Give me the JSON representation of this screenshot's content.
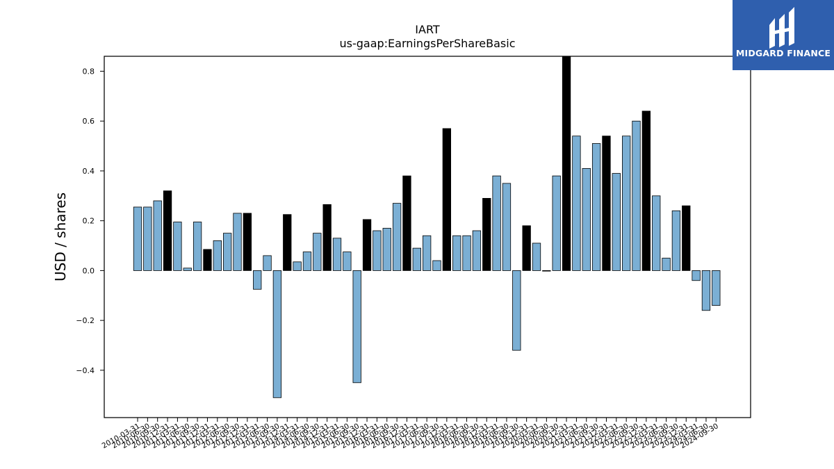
{
  "brand": {
    "name": "MIDGARD FINANCE",
    "background": "#2f5fae",
    "foreground": "#ffffff"
  },
  "chart_data": {
    "type": "bar",
    "title": "IART",
    "subtitle": "us-gaap:EarningsPerShareBasic",
    "xlabel": "",
    "ylabel": "USD / shares",
    "ylim": [
      -0.59,
      0.86
    ],
    "yticks": [
      -0.4,
      -0.2,
      0.0,
      0.2,
      0.4,
      0.6,
      0.8
    ],
    "ytick_labels": [
      "−0.4",
      "−0.2",
      "0.0",
      "0.2",
      "0.4",
      "0.6",
      "0.8"
    ],
    "grid": false,
    "colors": {
      "quarter": "#7bafd4",
      "annual": "#000000",
      "edge": "#000000"
    },
    "categories": [
      "2010-03-31",
      "2010-06-30",
      "2010-09-30",
      "2010-12-31",
      "2011-03-31",
      "2011-06-30",
      "2011-09-30",
      "2011-12-31",
      "2012-03-31",
      "2012-06-30",
      "2012-09-30",
      "2012-12-31",
      "2013-03-31",
      "2013-06-30",
      "2013-09-30",
      "2013-12-31",
      "2014-03-31",
      "2014-06-30",
      "2014-09-30",
      "2014-12-31",
      "2015-03-31",
      "2015-06-30",
      "2015-09-30",
      "2015-12-31",
      "2016-03-31",
      "2016-06-30",
      "2016-09-30",
      "2016-12-31",
      "2017-03-31",
      "2017-06-30",
      "2017-09-30",
      "2017-12-31",
      "2018-03-31",
      "2018-06-30",
      "2018-09-30",
      "2018-12-31",
      "2019-03-31",
      "2019-06-30",
      "2019-09-30",
      "2019-12-31",
      "2020-03-31",
      "2020-06-30",
      "2020-09-30",
      "2020-12-31",
      "2021-03-31",
      "2021-06-30",
      "2021-09-30",
      "2021-12-31",
      "2022-03-31",
      "2022-06-30",
      "2022-09-30",
      "2022-12-31",
      "2023-03-31",
      "2023-06-30",
      "2023-09-30",
      "2023-12-31",
      "2024-03-31",
      "2024-06-30",
      "2024-09-30"
    ],
    "values": [
      0.255,
      0.255,
      0.28,
      0.32,
      0.195,
      0.01,
      0.195,
      0.085,
      0.12,
      0.15,
      0.23,
      0.23,
      -0.075,
      0.06,
      -0.51,
      0.225,
      0.035,
      0.075,
      0.15,
      0.265,
      0.13,
      0.075,
      -0.45,
      0.205,
      0.16,
      0.17,
      0.27,
      0.38,
      0.09,
      0.14,
      0.04,
      0.57,
      0.14,
      0.14,
      0.16,
      0.29,
      0.38,
      0.35,
      -0.32,
      0.18,
      0.11,
      0.0,
      0.38,
      0.87,
      0.54,
      0.41,
      0.51,
      0.54,
      0.39,
      0.54,
      0.6,
      0.64,
      0.3,
      0.05,
      0.24,
      0.26,
      -0.04,
      -0.16,
      -0.14
    ],
    "period_type": [
      "q",
      "q",
      "q",
      "a",
      "q",
      "q",
      "q",
      "a",
      "q",
      "q",
      "q",
      "a",
      "q",
      "q",
      "q",
      "a",
      "q",
      "q",
      "q",
      "a",
      "q",
      "q",
      "q",
      "a",
      "q",
      "q",
      "q",
      "a",
      "q",
      "q",
      "q",
      "a",
      "q",
      "q",
      "q",
      "a",
      "q",
      "q",
      "q",
      "a",
      "q",
      "q",
      "q",
      "a",
      "q",
      "q",
      "q",
      "a",
      "q",
      "q",
      "q",
      "a",
      "q",
      "q",
      "q",
      "a",
      "q",
      "q",
      "q"
    ]
  }
}
